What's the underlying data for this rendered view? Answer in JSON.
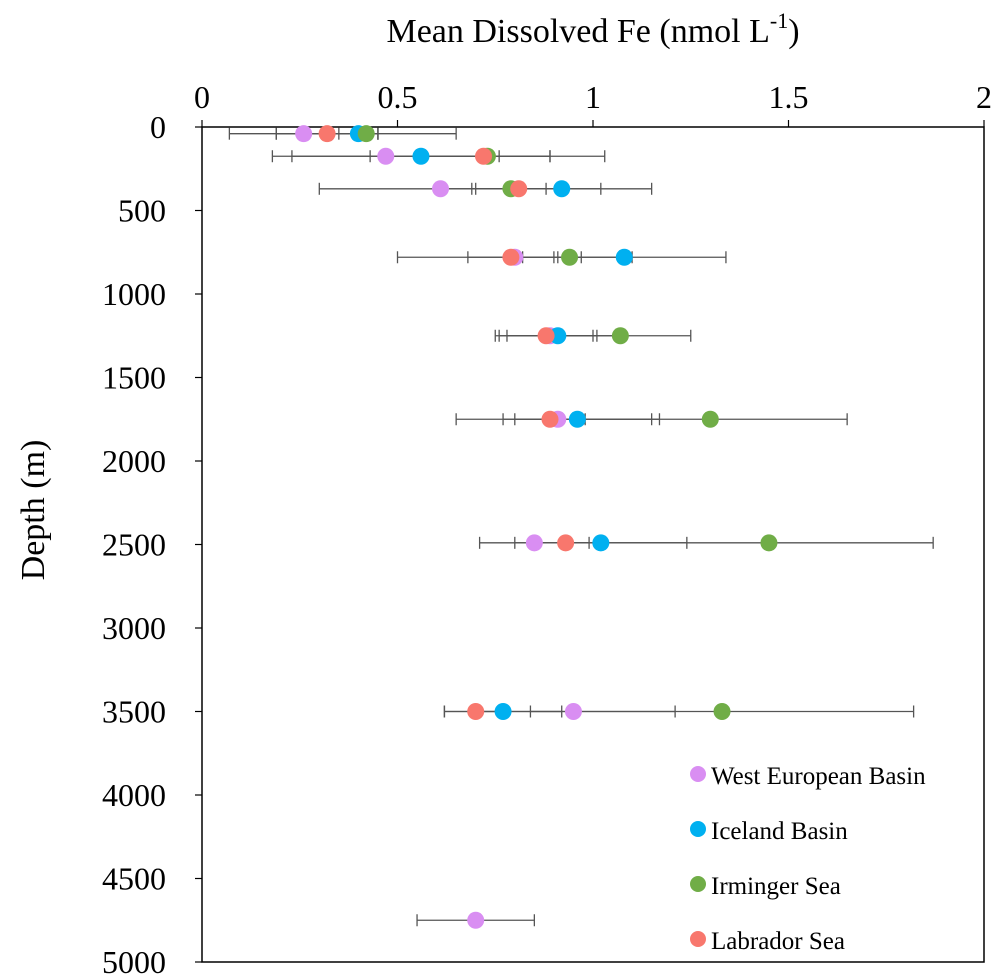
{
  "chart_data": {
    "type": "scatter",
    "title": "",
    "xlabel": {
      "text": "Mean Dissolved Fe (nmol L",
      "sup": "-1",
      "suffix": ")"
    },
    "ylabel": "Depth (m)",
    "xlim": [
      0,
      2
    ],
    "ylim": [
      5000,
      0
    ],
    "y_inverted": true,
    "x_axis_position": "top",
    "x_ticks": [
      0,
      0.5,
      1,
      1.5,
      2
    ],
    "x_tick_labels": [
      "0",
      "0.5",
      "1",
      "1.5",
      "2"
    ],
    "y_ticks": [
      0,
      500,
      1000,
      1500,
      2000,
      2500,
      3000,
      3500,
      4000,
      4500,
      5000
    ],
    "y_tick_labels": [
      "0",
      "500",
      "1000",
      "1500",
      "2000",
      "2500",
      "3000",
      "3500",
      "4000",
      "4500",
      "5000"
    ],
    "grid": false,
    "legend_position": "bottom-right",
    "error_bars": "horizontal",
    "series": [
      {
        "name": "West European Basin",
        "color": "#d98ef2",
        "points": [
          {
            "x": 0.26,
            "y": 40,
            "err": 0.19
          },
          {
            "x": 0.47,
            "y": 175,
            "err": 0.29
          },
          {
            "x": 0.61,
            "y": 370,
            "err": 0.31
          },
          {
            "x": 0.8,
            "y": 780,
            "err": 0.3
          },
          {
            "x": 0.89,
            "y": 1250,
            "err": 0.11
          },
          {
            "x": 0.91,
            "y": 1750,
            "err": 0.26
          },
          {
            "x": 0.85,
            "y": 2490,
            "err": 0.14
          },
          {
            "x": 0.95,
            "y": 3500,
            "err": 0.26
          },
          {
            "x": 0.7,
            "y": 4750,
            "err": 0.15
          }
        ]
      },
      {
        "name": "Iceland Basin",
        "color": "#00b0f0",
        "points": [
          {
            "x": 0.4,
            "y": 40,
            "err": 0.05
          },
          {
            "x": 0.56,
            "y": 175,
            "err": 0.33
          },
          {
            "x": 0.92,
            "y": 370,
            "err": 0.23
          },
          {
            "x": 1.08,
            "y": 780,
            "err": 0.26
          },
          {
            "x": 0.91,
            "y": 1250,
            "err": 0.15
          },
          {
            "x": 0.96,
            "y": 1750,
            "err": 0.19
          },
          {
            "x": 1.02,
            "y": 2490,
            "err": 0.22
          },
          {
            "x": 0.77,
            "y": 3500,
            "err": 0.15
          }
        ]
      },
      {
        "name": "Irminger Sea",
        "color": "#70ad47",
        "points": [
          {
            "x": 0.42,
            "y": 40,
            "err": 0.23
          },
          {
            "x": 0.73,
            "y": 175,
            "err": 0.3
          },
          {
            "x": 0.79,
            "y": 370,
            "err": 0.09
          },
          {
            "x": 0.94,
            "y": 780,
            "err": 0.03
          },
          {
            "x": 1.07,
            "y": 1250,
            "err": 0.18
          },
          {
            "x": 1.3,
            "y": 1750,
            "err": 0.35
          },
          {
            "x": 1.45,
            "y": 2490,
            "err": 0.42
          },
          {
            "x": 1.33,
            "y": 3500,
            "err": 0.49
          }
        ]
      },
      {
        "name": "Labrador Sea",
        "color": "#f8776d",
        "points": [
          {
            "x": 0.32,
            "y": 40,
            "err": 0.13
          },
          {
            "x": 0.72,
            "y": 175,
            "err": 0.17
          },
          {
            "x": 0.81,
            "y": 370,
            "err": 0.21
          },
          {
            "x": 0.79,
            "y": 780,
            "err": 0.11
          },
          {
            "x": 0.88,
            "y": 1250,
            "err": 0.13
          },
          {
            "x": 0.89,
            "y": 1750,
            "err": 0.09
          },
          {
            "x": 0.93,
            "y": 2490,
            "err": 0.09
          },
          {
            "x": 0.7,
            "y": 3500,
            "err": 0.08
          }
        ]
      }
    ]
  }
}
